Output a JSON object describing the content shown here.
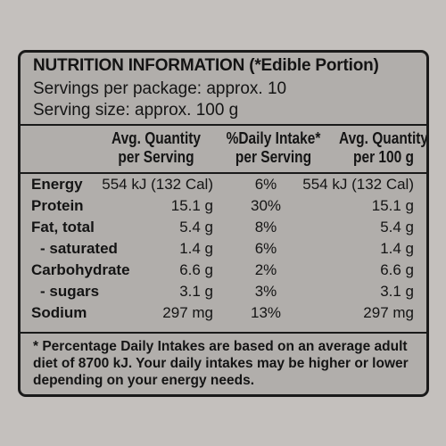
{
  "header": {
    "title": "NUTRITION INFORMATION (*Edible Portion)",
    "servings": "Servings per package: approx. 10",
    "serving_size": "Serving size: approx. 100 g"
  },
  "columns": {
    "per_serving": [
      "Avg. Quantity",
      "per Serving"
    ],
    "daily_intake": [
      "%Daily Intake*",
      "per Serving"
    ],
    "per_100g": [
      "Avg. Quantity",
      "per 100 g"
    ]
  },
  "rows": [
    {
      "label": "Energy",
      "per_serving": "554 kJ (132 Cal)",
      "daily_intake": "6%",
      "per_100g": "554 kJ (132 Cal)"
    },
    {
      "label": "Protein",
      "per_serving": "15.1 g",
      "daily_intake": "30%",
      "per_100g": "15.1 g"
    },
    {
      "label": "Fat, total",
      "per_serving": "5.4 g",
      "daily_intake": "8%",
      "per_100g": "5.4 g"
    },
    {
      "label": "- saturated",
      "per_serving": "1.4 g",
      "daily_intake": "6%",
      "per_100g": "1.4 g"
    },
    {
      "label": "Carbohydrate",
      "per_serving": "6.6 g",
      "daily_intake": "2%",
      "per_100g": "6.6 g"
    },
    {
      "label": "- sugars",
      "per_serving": "3.1 g",
      "daily_intake": "3%",
      "per_100g": "3.1 g"
    },
    {
      "label": "Sodium",
      "per_serving": "297 mg",
      "daily_intake": "13%",
      "per_100g": "297 mg"
    }
  ],
  "footnote": [
    "* Percentage Daily Intakes are based on an average adult",
    "diet of 8700 kJ. Your daily intakes may be higher or lower",
    "depending on your energy needs."
  ]
}
